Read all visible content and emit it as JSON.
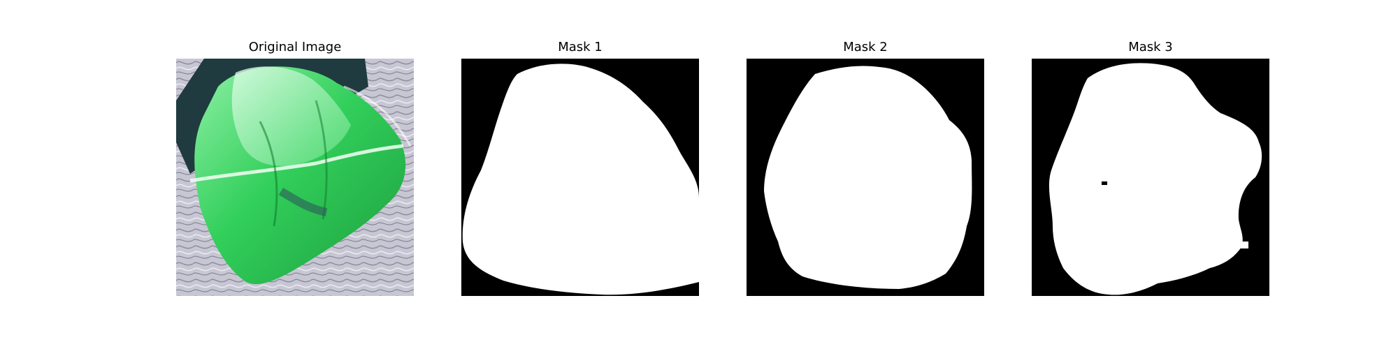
{
  "figure": {
    "panels": [
      {
        "title": "Original Image"
      },
      {
        "title": "Mask 1"
      },
      {
        "title": "Mask 2"
      },
      {
        "title": "Mask 3"
      }
    ]
  },
  "colors": {
    "background": "#ffffff",
    "mask_background": "#000000",
    "mask_foreground": "#ffffff",
    "vegetation_green": "#34c759",
    "dark_water": "#1e3a3e",
    "textured_gray": "#bcbccc"
  }
}
